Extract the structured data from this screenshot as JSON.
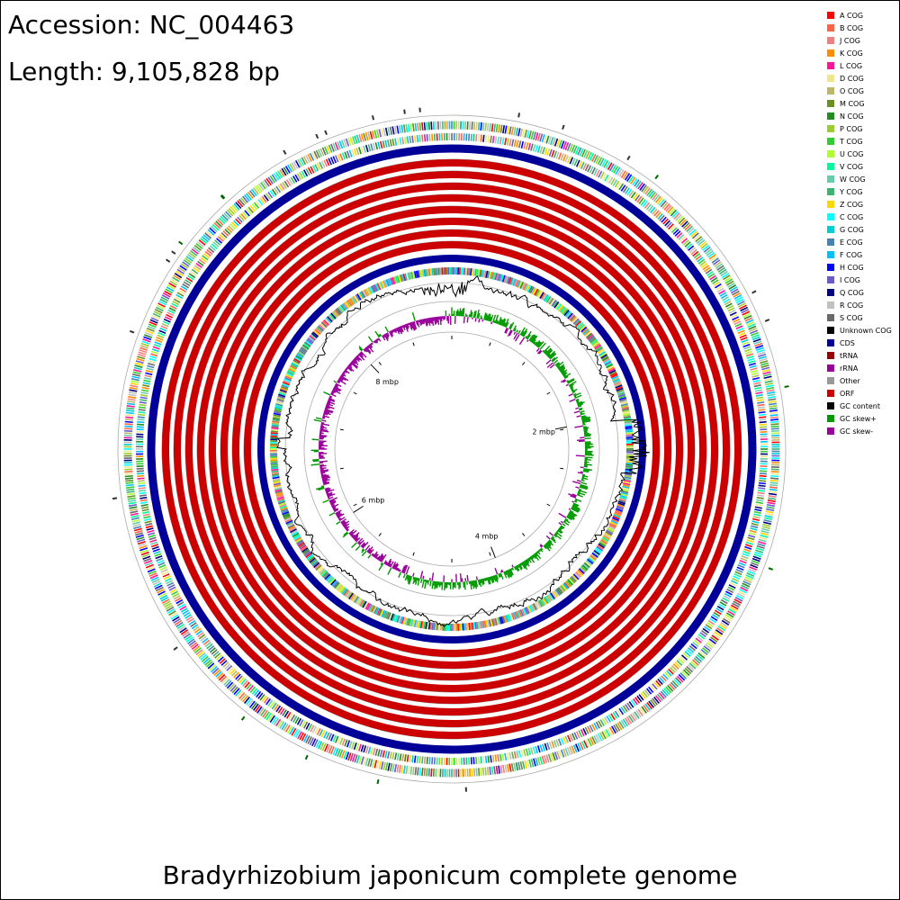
{
  "header": {
    "accession": "Accession: NC_004463",
    "length": "Length: 9,105,828 bp"
  },
  "caption": "Bradyrhizobium japonicum complete genome",
  "legend": [
    {
      "label": "A COG",
      "color": "#ff0000"
    },
    {
      "label": "B COG",
      "color": "#ff6347"
    },
    {
      "label": "J COG",
      "color": "#f08080"
    },
    {
      "label": "K COG",
      "color": "#ff8c00"
    },
    {
      "label": "L COG",
      "color": "#ff1493"
    },
    {
      "label": "D COG",
      "color": "#f0e68c"
    },
    {
      "label": "O COG",
      "color": "#bdb76b"
    },
    {
      "label": "M COG",
      "color": "#6b8e23"
    },
    {
      "label": "N COG",
      "color": "#228b22"
    },
    {
      "label": "P COG",
      "color": "#9acd32"
    },
    {
      "label": "T COG",
      "color": "#32cd32"
    },
    {
      "label": "U COG",
      "color": "#adff2f"
    },
    {
      "label": "V COG",
      "color": "#00fa9a"
    },
    {
      "label": "W COG",
      "color": "#66cdaa"
    },
    {
      "label": "Y COG",
      "color": "#3cb371"
    },
    {
      "label": "Z COG",
      "color": "#ffd700"
    },
    {
      "label": "C COG",
      "color": "#00ffff"
    },
    {
      "label": "G COG",
      "color": "#00ced1"
    },
    {
      "label": "E COG",
      "color": "#4682b4"
    },
    {
      "label": "F COG",
      "color": "#00bfff"
    },
    {
      "label": "H COG",
      "color": "#0000ff"
    },
    {
      "label": "I COG",
      "color": "#6a5acd"
    },
    {
      "label": "Q COG",
      "color": "#000080"
    },
    {
      "label": "R COG",
      "color": "#c0c0c0"
    },
    {
      "label": "S COG",
      "color": "#696969"
    },
    {
      "label": "Unknown COG",
      "color": "#000000"
    },
    {
      "label": "CDS",
      "color": "#000099"
    },
    {
      "label": "tRNA",
      "color": "#990000"
    },
    {
      "label": "rRNA",
      "color": "#990099"
    },
    {
      "label": "Other",
      "color": "#999999"
    },
    {
      "label": "ORF",
      "color": "#cc0000"
    },
    {
      "label": "GC content",
      "color": "#000000"
    },
    {
      "label": "GC skew+",
      "color": "#009900"
    },
    {
      "label": "GC skew-",
      "color": "#990099"
    }
  ],
  "genome_map": {
    "genome_length_bp": 9105828,
    "tick_labels": [
      {
        "text": "2 mbp",
        "position_bp": 2000000
      },
      {
        "text": "4 mbp",
        "position_bp": 4000000
      },
      {
        "text": "6 mbp",
        "position_bp": 6000000
      },
      {
        "text": "8 mbp",
        "position_bp": 8000000
      }
    ],
    "colors": {
      "cds": "#000099",
      "orf": "#cc0000",
      "gc_content": "#000000",
      "gc_skew_plus": "#009900",
      "gc_skew_minus": "#990099",
      "backbone": "#999999"
    }
  }
}
